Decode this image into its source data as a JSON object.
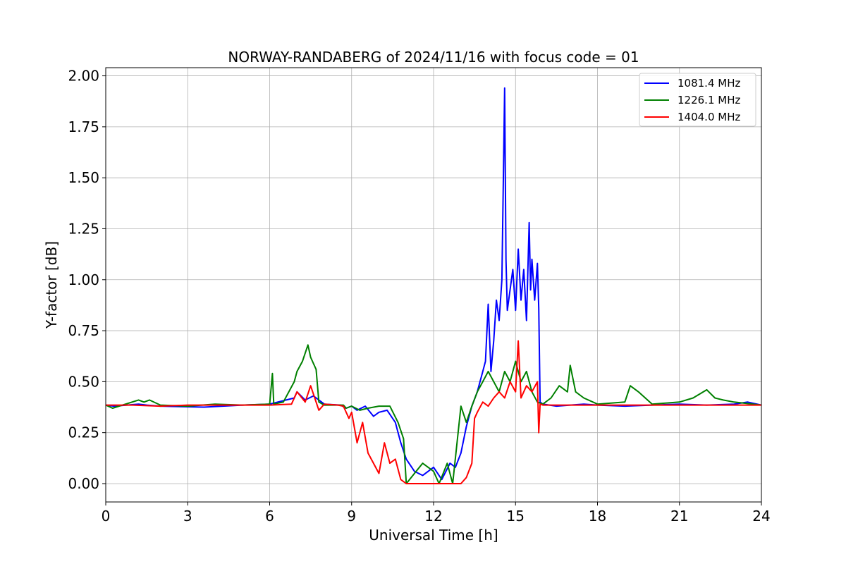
{
  "chart_data": {
    "type": "line",
    "title": "NORWAY-RANDABERG of 2024/11/16 with focus code = 01",
    "xlabel": "Universal Time [h]",
    "ylabel": "Y-factor [dB]",
    "xlim": [
      0,
      24
    ],
    "ylim": [
      -0.09,
      2.04
    ],
    "xticks": [
      0,
      3,
      6,
      9,
      12,
      15,
      18,
      21,
      24
    ],
    "xtick_labels": [
      "0",
      "3",
      "6",
      "9",
      "12",
      "15",
      "18",
      "21",
      "24"
    ],
    "yticks": [
      0.0,
      0.25,
      0.5,
      0.75,
      1.0,
      1.25,
      1.5,
      1.75,
      2.0
    ],
    "ytick_labels": [
      "0.00",
      "0.25",
      "0.50",
      "0.75",
      "1.00",
      "1.25",
      "1.50",
      "1.75",
      "2.00"
    ],
    "grid": true,
    "legend_position": "top-right",
    "series": [
      {
        "name": "1081.4 MHz",
        "color": "#0000ff",
        "x": [
          0,
          0.3,
          1.2,
          1.5,
          2.0,
          3.6,
          5.0,
          6.0,
          6.9,
          7.0,
          7.3,
          7.6,
          8.0,
          8.6,
          8.8,
          9.0,
          9.2,
          9.5,
          9.8,
          10.0,
          10.3,
          10.6,
          10.8,
          11.0,
          11.3,
          11.6,
          12.0,
          12.3,
          12.6,
          12.8,
          13.0,
          13.2,
          13.4,
          13.6,
          13.8,
          13.9,
          14.0,
          14.1,
          14.2,
          14.3,
          14.4,
          14.5,
          14.55,
          14.6,
          14.65,
          14.7,
          14.8,
          14.9,
          15.0,
          15.1,
          15.2,
          15.3,
          15.4,
          15.5,
          15.55,
          15.6,
          15.7,
          15.8,
          15.85,
          15.9,
          16.0,
          16.5,
          17.0,
          17.5,
          18.0,
          19.0,
          20.0,
          21.0,
          22.0,
          23.0,
          23.5,
          24.0
        ],
        "y": [
          0.385,
          0.38,
          0.39,
          0.385,
          0.38,
          0.375,
          0.385,
          0.39,
          0.42,
          0.45,
          0.41,
          0.43,
          0.39,
          0.385,
          0.37,
          0.38,
          0.36,
          0.38,
          0.33,
          0.35,
          0.36,
          0.3,
          0.2,
          0.12,
          0.06,
          0.04,
          0.08,
          0.02,
          0.1,
          0.08,
          0.15,
          0.28,
          0.38,
          0.45,
          0.55,
          0.6,
          0.88,
          0.55,
          0.7,
          0.9,
          0.8,
          1.0,
          1.45,
          1.94,
          1.1,
          0.85,
          0.95,
          1.05,
          0.85,
          1.15,
          0.9,
          1.05,
          0.8,
          1.28,
          0.95,
          1.1,
          0.9,
          1.08,
          0.86,
          0.4,
          0.39,
          0.38,
          0.385,
          0.39,
          0.385,
          0.38,
          0.385,
          0.39,
          0.385,
          0.39,
          0.4,
          0.385
        ]
      },
      {
        "name": "1226.1 MHz",
        "color": "#008000",
        "x": [
          0,
          0.25,
          1.2,
          1.4,
          1.6,
          2.0,
          3.0,
          4.0,
          5.0,
          6.0,
          6.1,
          6.15,
          6.5,
          6.9,
          7.0,
          7.2,
          7.4,
          7.5,
          7.7,
          7.8,
          8.0,
          8.7,
          8.8,
          9.0,
          9.3,
          9.6,
          10.0,
          10.4,
          10.7,
          10.9,
          11.0,
          11.3,
          11.6,
          12.0,
          12.2,
          12.5,
          12.7,
          13.0,
          13.2,
          13.4,
          13.6,
          13.8,
          14.0,
          14.2,
          14.4,
          14.6,
          14.8,
          15.0,
          15.2,
          15.4,
          15.6,
          15.8,
          16.0,
          16.3,
          16.6,
          16.9,
          17.0,
          17.2,
          17.5,
          18.0,
          19.0,
          19.2,
          19.5,
          20.0,
          21.0,
          21.5,
          22.0,
          22.3,
          22.6,
          23.0,
          24.0
        ],
        "y": [
          0.385,
          0.37,
          0.41,
          0.4,
          0.41,
          0.385,
          0.38,
          0.39,
          0.385,
          0.39,
          0.54,
          0.39,
          0.4,
          0.5,
          0.55,
          0.6,
          0.68,
          0.62,
          0.56,
          0.4,
          0.385,
          0.385,
          0.37,
          0.38,
          0.36,
          0.37,
          0.38,
          0.38,
          0.3,
          0.22,
          0.0,
          0.05,
          0.1,
          0.06,
          0.0,
          0.1,
          0.0,
          0.38,
          0.3,
          0.38,
          0.45,
          0.5,
          0.55,
          0.5,
          0.45,
          0.55,
          0.5,
          0.6,
          0.5,
          0.55,
          0.45,
          0.4,
          0.39,
          0.42,
          0.48,
          0.45,
          0.58,
          0.45,
          0.42,
          0.39,
          0.4,
          0.48,
          0.45,
          0.39,
          0.4,
          0.42,
          0.46,
          0.42,
          0.41,
          0.4,
          0.385
        ]
      },
      {
        "name": "1404.0 MHz",
        "color": "#ff0000",
        "x": [
          0,
          1.0,
          2.0,
          3.0,
          4.0,
          5.0,
          6.0,
          6.8,
          7.0,
          7.3,
          7.5,
          7.7,
          7.8,
          8.0,
          8.5,
          8.7,
          8.9,
          9.0,
          9.2,
          9.4,
          9.6,
          9.8,
          10.0,
          10.2,
          10.4,
          10.6,
          10.8,
          11.0,
          11.5,
          12.0,
          12.5,
          13.0,
          13.2,
          13.4,
          13.5,
          13.6,
          13.8,
          14.0,
          14.2,
          14.4,
          14.6,
          14.8,
          15.0,
          15.1,
          15.2,
          15.4,
          15.6,
          15.8,
          15.85,
          15.9,
          16.0,
          17.0,
          18.0,
          19.0,
          20.0,
          21.0,
          22.0,
          23.0,
          24.0
        ],
        "y": [
          0.385,
          0.385,
          0.38,
          0.385,
          0.385,
          0.385,
          0.385,
          0.39,
          0.45,
          0.4,
          0.48,
          0.4,
          0.36,
          0.39,
          0.385,
          0.38,
          0.32,
          0.35,
          0.2,
          0.3,
          0.15,
          0.1,
          0.05,
          0.2,
          0.1,
          0.12,
          0.02,
          0.0,
          0.0,
          0.0,
          0.0,
          0.0,
          0.03,
          0.1,
          0.32,
          0.35,
          0.4,
          0.38,
          0.42,
          0.45,
          0.42,
          0.5,
          0.45,
          0.7,
          0.42,
          0.48,
          0.45,
          0.5,
          0.25,
          0.39,
          0.385,
          0.385,
          0.385,
          0.385,
          0.385,
          0.385,
          0.385,
          0.385,
          0.385
        ]
      }
    ]
  }
}
